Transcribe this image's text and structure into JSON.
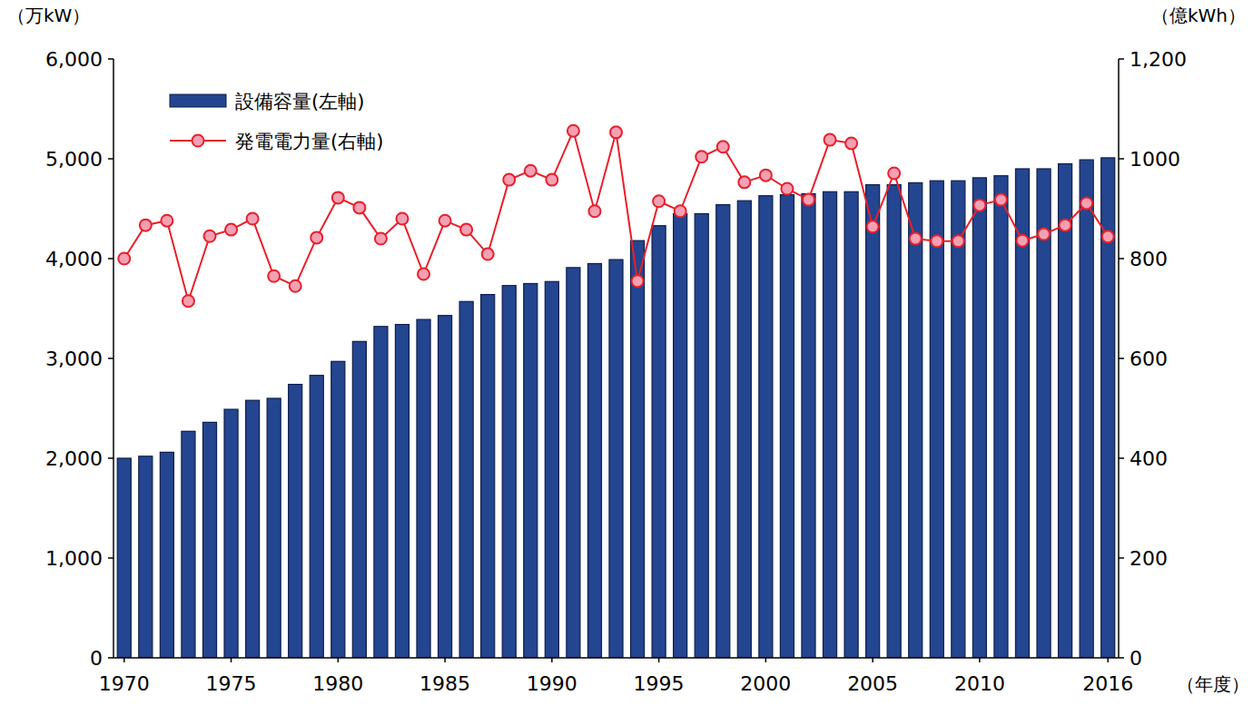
{
  "chart_data": {
    "type": "bar",
    "y_label": "（万kW）",
    "y2_label": "（億kWh）",
    "x_label": "（年度）",
    "categories": [
      "1970",
      null,
      null,
      null,
      null,
      "1975",
      null,
      null,
      null,
      null,
      "1980",
      null,
      null,
      null,
      null,
      "1985",
      null,
      null,
      null,
      null,
      "1990",
      null,
      null,
      null,
      null,
      "1995",
      null,
      null,
      null,
      null,
      "2000",
      null,
      null,
      null,
      null,
      "2005",
      null,
      null,
      null,
      null,
      "2010",
      null,
      null,
      null,
      null,
      null,
      "2016"
    ],
    "series": [
      {
        "name": "設備容量(左軸)",
        "type": "bar",
        "color": "#24458f",
        "values": [
          2000,
          2020,
          2060,
          2270,
          2360,
          2490,
          2580,
          2600,
          2740,
          2830,
          2970,
          3170,
          3320,
          3340,
          3390,
          3430,
          3570,
          3640,
          3730,
          3750,
          3770,
          3910,
          3950,
          3990,
          4180,
          4330,
          4450,
          4450,
          4540,
          4580,
          4630,
          4640,
          4650,
          4670,
          4670,
          4740,
          4740,
          4760,
          4780,
          4780,
          4810,
          4830,
          4900,
          4900,
          4950,
          4990,
          5010
        ]
      },
      {
        "name": "発電電力量(右軸)",
        "type": "line",
        "axis": "y2",
        "color": "#e8202a",
        "marker": "circle",
        "values": [
          800,
          867,
          876,
          715,
          845,
          858,
          880,
          765,
          745,
          842,
          922,
          902,
          840,
          880,
          769,
          876,
          858,
          809,
          958,
          976,
          958,
          1056,
          895,
          1053,
          755,
          915,
          895,
          1004,
          1024,
          953,
          967,
          940,
          918,
          1038,
          1031,
          864,
          971,
          840,
          835,
          835,
          907,
          918,
          836,
          849,
          867,
          911,
          844
        ]
      }
    ],
    "ylim": [
      0,
      6000
    ],
    "yticks": [
      0,
      {
        "value": 1000,
        "label": "1,000"
      },
      {
        "value": 2000,
        "label": "2,000"
      },
      {
        "value": 3000,
        "label": "3,000"
      },
      {
        "value": 4000,
        "label": "4,000"
      },
      {
        "value": 5000,
        "label": "5,000"
      },
      {
        "value": 6000,
        "label": "6,000"
      }
    ],
    "y2lim": [
      0,
      1200
    ],
    "y2ticks": [
      0,
      200,
      400,
      600,
      800,
      1000,
      {
        "value": 1200,
        "label": "1,200"
      }
    ],
    "grid": false,
    "legend": "upper left"
  }
}
